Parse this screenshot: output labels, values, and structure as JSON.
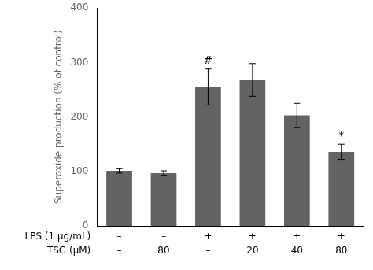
{
  "chart_data": {
    "type": "bar",
    "categories": [
      [
        "–",
        "–"
      ],
      [
        "–",
        "80"
      ],
      [
        "+",
        "–"
      ],
      [
        "+",
        "20"
      ],
      [
        "+",
        "40"
      ],
      [
        "+",
        "80"
      ]
    ],
    "row_labels": [
      "LPS (1 μg/mL)",
      "TSG (μM)"
    ],
    "values": [
      101,
      97,
      255,
      268,
      203,
      136
    ],
    "errors": [
      4,
      4,
      33,
      30,
      22,
      14
    ],
    "color": "#636363",
    "ylabel": "Superoxide production (% of control)",
    "ylim": [
      0,
      400
    ],
    "yticks": [
      0,
      100,
      200,
      300,
      400
    ],
    "grid": false,
    "annotations": [
      {
        "index": 2,
        "text": "#"
      },
      {
        "index": 5,
        "text": "*"
      }
    ]
  }
}
